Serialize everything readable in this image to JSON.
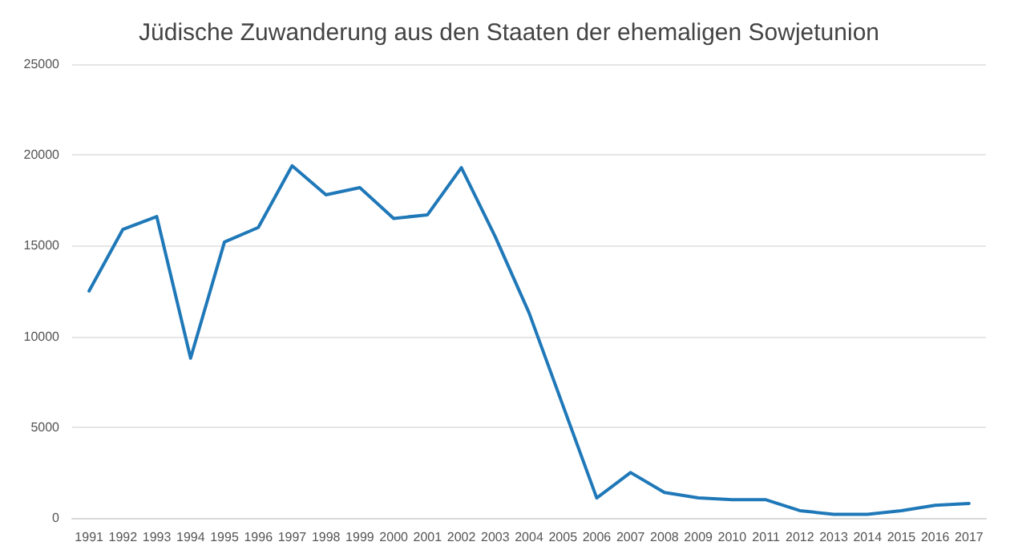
{
  "chart_data": {
    "type": "line",
    "title": "Jüdische Zuwanderung aus den Staaten der ehemaligen Sowjetunion",
    "categories": [
      "1991",
      "1992",
      "1993",
      "1994",
      "1995",
      "1996",
      "1997",
      "1998",
      "1999",
      "2000",
      "2001",
      "2002",
      "2003",
      "2004",
      "2005",
      "2006",
      "2007",
      "2008",
      "2009",
      "2010",
      "2011",
      "2012",
      "2013",
      "2014",
      "2015",
      "2016",
      "2017"
    ],
    "series": [
      {
        "color": "#1f78b8",
        "values": [
          12500,
          15900,
          16600,
          8800,
          15200,
          16000,
          19400,
          17800,
          18200,
          16500,
          16700,
          19300,
          15500,
          11300,
          6200,
          1100,
          2500,
          1400,
          1100,
          1000,
          1000,
          400,
          200,
          200,
          400,
          700,
          800
        ]
      }
    ],
    "ylim": [
      0,
      25000
    ],
    "yticks": [
      0,
      5000,
      10000,
      15000,
      20000,
      25000
    ],
    "grid": "y",
    "marker": "none",
    "line_style": "solid"
  }
}
